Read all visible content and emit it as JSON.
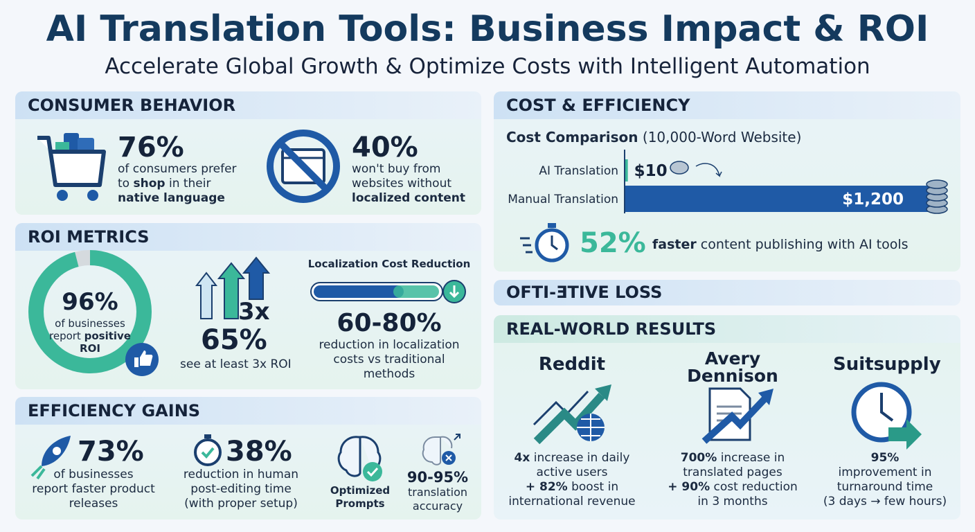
{
  "header": {
    "title": "AI Translation Tools: Business Impact & ROI",
    "subtitle": "Accelerate Global Growth & Optimize Costs with Intelligent Automation"
  },
  "consumer_behavior": {
    "heading": "CONSUMER BEHAVIOR",
    "stats": [
      {
        "value": "76%",
        "text": [
          "of consumers prefer",
          "to",
          "shop",
          "in their",
          "native language"
        ]
      },
      {
        "value": "40%",
        "text": [
          "won't buy from",
          "websites without",
          "localized content"
        ]
      }
    ]
  },
  "roi_metrics": {
    "heading": "ROI METRICS",
    "donut": {
      "value": 96,
      "label": "96%",
      "text": [
        "of businesses",
        "report",
        "positive",
        "ROI"
      ]
    },
    "multiplier": {
      "badge": "3x",
      "value": "65%",
      "text": "see at least 3x ROI"
    },
    "cost_reduction": {
      "title": "Localization Cost Reduction",
      "value": "60-80%",
      "text": [
        "reduction in localization",
        "costs vs traditional",
        "methods"
      ]
    }
  },
  "efficiency_gains": {
    "heading": "EFFICIENCY GAINS",
    "items": [
      {
        "value": "73%",
        "text": [
          "of businesses",
          "report faster product",
          "releases"
        ]
      },
      {
        "value": "38%",
        "text": [
          "reduction in human",
          "post-editing time",
          "(with proper setup)"
        ]
      },
      {
        "label": [
          "Optimized",
          "Prompts"
        ]
      },
      {
        "value": "90-95%",
        "text": [
          "translation",
          "accuracy"
        ]
      }
    ]
  },
  "cost_efficiency": {
    "heading": "COST & EFFICIENCY",
    "comparison": {
      "title": "Cost Comparison",
      "note": "(10,000-Word Website)",
      "categories": [
        "AI Translation",
        "Manual Translation"
      ],
      "values": [
        10,
        1200
      ],
      "value_labels": [
        "$10",
        "$1,200"
      ]
    },
    "speed": {
      "value": "52%",
      "text": [
        "faster",
        "content publishing with AI tools"
      ]
    }
  },
  "garbled_heading": "OFTI-ƎTIVE LOSS",
  "real_world_results": {
    "heading": "REAL-WORLD RESULTS",
    "cases": [
      {
        "name": [
          "Reddit"
        ],
        "text": [
          "4x",
          "increase in daily",
          "active users",
          "+ 82%",
          "boost in",
          "international revenue"
        ]
      },
      {
        "name": [
          "Avery",
          "Dennison"
        ],
        "text": [
          "700%",
          "increase in",
          "translated pages",
          "+ 90%",
          "cost reduction",
          "in 3 months"
        ]
      },
      {
        "name": [
          "Suitsupply"
        ],
        "text": [
          "95%",
          "improvement in",
          "turnaround time",
          "(3 days → few hours)"
        ]
      }
    ]
  }
}
